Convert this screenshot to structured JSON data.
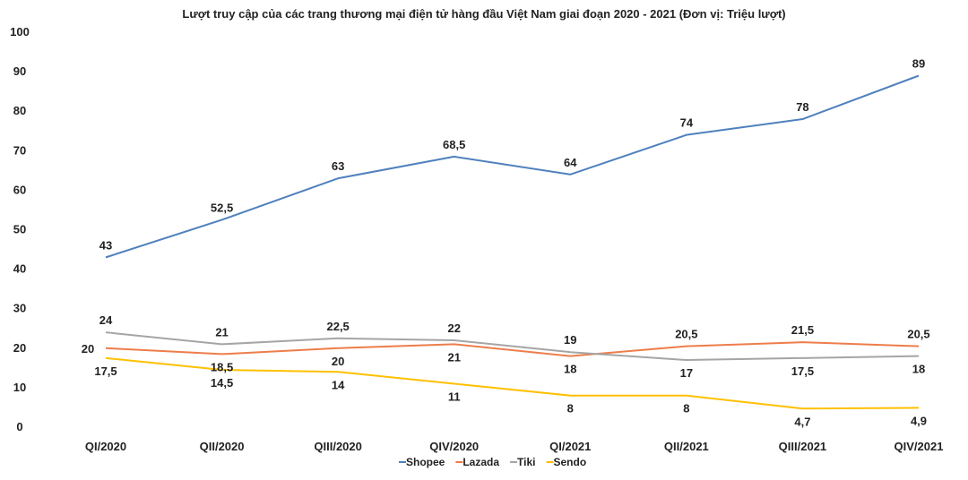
{
  "chart_data": {
    "type": "line",
    "title": "Lượt truy cập của các trang thương mại điện tử hàng đầu Việt Nam giai đoạn 2020 - 2021 (Đơn vị: Triệu lượt)",
    "xlabel": "",
    "ylabel": "",
    "ylim": [
      0,
      100
    ],
    "yticks": [
      0,
      10,
      20,
      30,
      40,
      50,
      60,
      70,
      80,
      90,
      100
    ],
    "grid": false,
    "legend_position": "bottom",
    "categories": [
      "QI/2020",
      "QII/2020",
      "QIII/2020",
      "QIV/2020",
      "QI/2021",
      "QII/2021",
      "QIII/2021",
      "QIV/2021"
    ],
    "series": [
      {
        "name": "Shopee",
        "color": "#4f81bd",
        "values": [
          43,
          52.5,
          63,
          68.5,
          64,
          74,
          78,
          89
        ],
        "labels": [
          "43",
          "52,5",
          "63",
          "68,5",
          "64",
          "74",
          "78",
          "89"
        ],
        "label_side": [
          "above",
          "above",
          "above",
          "above",
          "above",
          "above",
          "above",
          "above"
        ]
      },
      {
        "name": "Lazada",
        "color": "#ed7d4a",
        "values": [
          20,
          18.5,
          20,
          21,
          18,
          20.5,
          21.5,
          20.5
        ],
        "labels": [
          "20",
          "18,5",
          "20",
          "21",
          "18",
          "20,5",
          "21,5",
          "20,5"
        ],
        "label_side": [
          "left",
          "below",
          "below",
          "below",
          "below",
          "above",
          "above",
          "above"
        ]
      },
      {
        "name": "Tiki",
        "color": "#a5a5a5",
        "values": [
          24,
          21,
          22.5,
          22,
          19,
          17,
          17.5,
          18
        ],
        "labels": [
          "24",
          "21",
          "22,5",
          "22",
          "19",
          "17",
          "17,5",
          "18"
        ],
        "label_side": [
          "above",
          "above",
          "above",
          "above",
          "above",
          "below",
          "below",
          "below"
        ]
      },
      {
        "name": "Sendo",
        "color": "#ffc000",
        "values": [
          17.5,
          14.5,
          14,
          11,
          8,
          8,
          4.7,
          4.9
        ],
        "labels": [
          "17,5",
          "14,5",
          "14",
          "11",
          "8",
          "8",
          "4,7",
          "4,9"
        ],
        "label_side": [
          "below",
          "below",
          "below",
          "below",
          "below",
          "below",
          "below",
          "below"
        ]
      }
    ]
  }
}
